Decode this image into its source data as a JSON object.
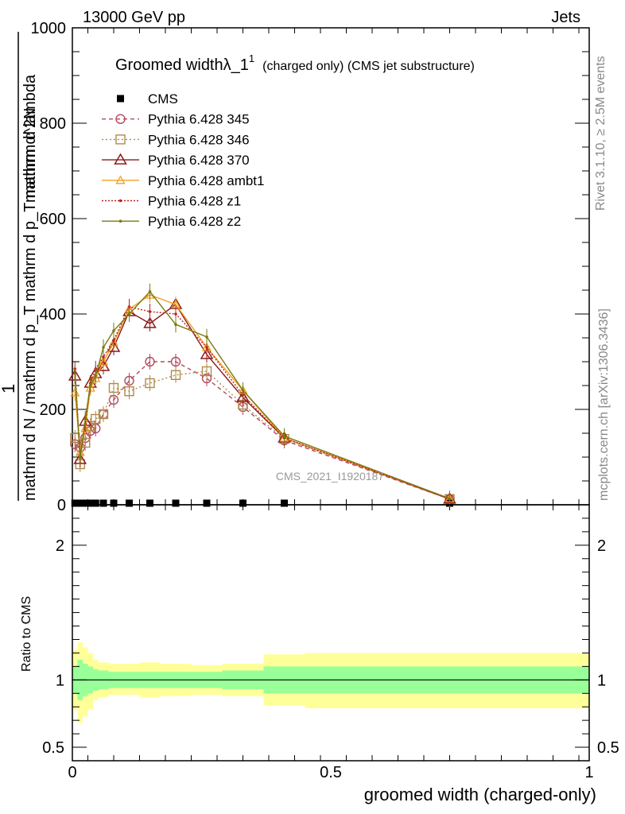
{
  "header": {
    "left": "13000 GeV pp",
    "right": "Jets"
  },
  "side": {
    "rivet": "Rivet 3.1.10, ≥ 2.5M events",
    "mcplots": "mcplots.cern.ch [arXiv:1306.3436]"
  },
  "watermark": "CMS_2021_I1920187",
  "colors": {
    "cms": "#000000",
    "p345": "#b24a5e",
    "p346": "#b08a4a",
    "p370": "#8b1a1a",
    "ambt1": "#f0a020",
    "z1": "#c02020",
    "z2": "#7a7a10",
    "band_inner": "#99ff99",
    "band_outer": "#ffff99"
  },
  "chart_data": {
    "type": "line",
    "title": "Groomed widthλ_1",
    "title_sup": "1",
    "title_note": "(charged only) (CMS jet substructure)",
    "ylabel_main": [
      "1",
      "mathrm d N / mathrm d p_T mathrm d p_T mathrm d lambda",
      "mathrm d^2N"
    ],
    "ylabel_ratio": "Ratio to CMS",
    "xlabel": "groomed width (charged-only)",
    "xlim": [
      0,
      1
    ],
    "ylim_main": [
      0,
      1000
    ],
    "ylim_ratio": [
      0.4,
      2.3
    ],
    "x_ticks": [
      0,
      0.5,
      1
    ],
    "x_tick_labels": [
      "0",
      "0.5",
      "1"
    ],
    "y_ticks_main": [
      0,
      200,
      400,
      600,
      800,
      1000
    ],
    "y_tick_labels_main": [
      "0",
      "200",
      "400",
      "600",
      "800",
      "1000"
    ],
    "y_ticks_ratio": [
      0.5,
      1,
      2
    ],
    "y_tick_labels_ratio": [
      "0.5",
      "1",
      "2"
    ],
    "legend_position": "top-left",
    "x": [
      0.005,
      0.015,
      0.025,
      0.035,
      0.045,
      0.06,
      0.08,
      0.11,
      0.15,
      0.2,
      0.26,
      0.33,
      0.41,
      0.73
    ],
    "series": [
      {
        "name": "CMS",
        "values": [
          0.5,
          0.5,
          0.5,
          0.5,
          0.5,
          0.5,
          0.5,
          0.5,
          0.5,
          0.5,
          0.5,
          0.5,
          0.5,
          0.5
        ]
      },
      {
        "name": "Pythia 6.428 345",
        "values": [
          127,
          120,
          140,
          155,
          160,
          190,
          220,
          260,
          300,
          300,
          265,
          205,
          135,
          12
        ]
      },
      {
        "name": "Pythia 6.428 346",
        "values": [
          140,
          85,
          130,
          165,
          180,
          190,
          245,
          238,
          255,
          272,
          280,
          210,
          138,
          12
        ]
      },
      {
        "name": "Pythia 6.428 370",
        "values": [
          270,
          95,
          175,
          255,
          275,
          290,
          330,
          405,
          380,
          420,
          315,
          225,
          140,
          12
        ]
      },
      {
        "name": "Pythia 6.428 ambt1",
        "values": [
          235,
          110,
          160,
          245,
          265,
          300,
          340,
          410,
          440,
          420,
          330,
          240,
          140,
          13
        ]
      },
      {
        "name": "Pythia 6.428 z1",
        "values": [
          285,
          100,
          170,
          255,
          285,
          310,
          345,
          415,
          405,
          400,
          330,
          230,
          140,
          12
        ]
      },
      {
        "name": "Pythia 6.428 z2",
        "values": [
          275,
          100,
          180,
          250,
          270,
          330,
          365,
          400,
          447,
          378,
          352,
          240,
          144,
          13
        ]
      }
    ],
    "ratio_bands": {
      "edges": [
        0,
        0.01,
        0.02,
        0.03,
        0.04,
        0.05,
        0.07,
        0.09,
        0.13,
        0.17,
        0.23,
        0.29,
        0.37,
        0.45,
        1.0
      ],
      "inner_lo": [
        0.9,
        0.85,
        0.88,
        0.9,
        0.92,
        0.93,
        0.94,
        0.94,
        0.94,
        0.94,
        0.94,
        0.93,
        0.9,
        0.9
      ],
      "inner_hi": [
        1.1,
        1.15,
        1.12,
        1.1,
        1.08,
        1.07,
        1.06,
        1.06,
        1.06,
        1.06,
        1.06,
        1.07,
        1.1,
        1.1
      ],
      "outer_lo": [
        0.78,
        0.68,
        0.73,
        0.78,
        0.85,
        0.87,
        0.89,
        0.89,
        0.87,
        0.88,
        0.89,
        0.88,
        0.81,
        0.79
      ],
      "outer_hi": [
        1.22,
        1.28,
        1.24,
        1.2,
        1.15,
        1.13,
        1.12,
        1.12,
        1.13,
        1.12,
        1.11,
        1.12,
        1.19,
        1.2
      ]
    }
  }
}
